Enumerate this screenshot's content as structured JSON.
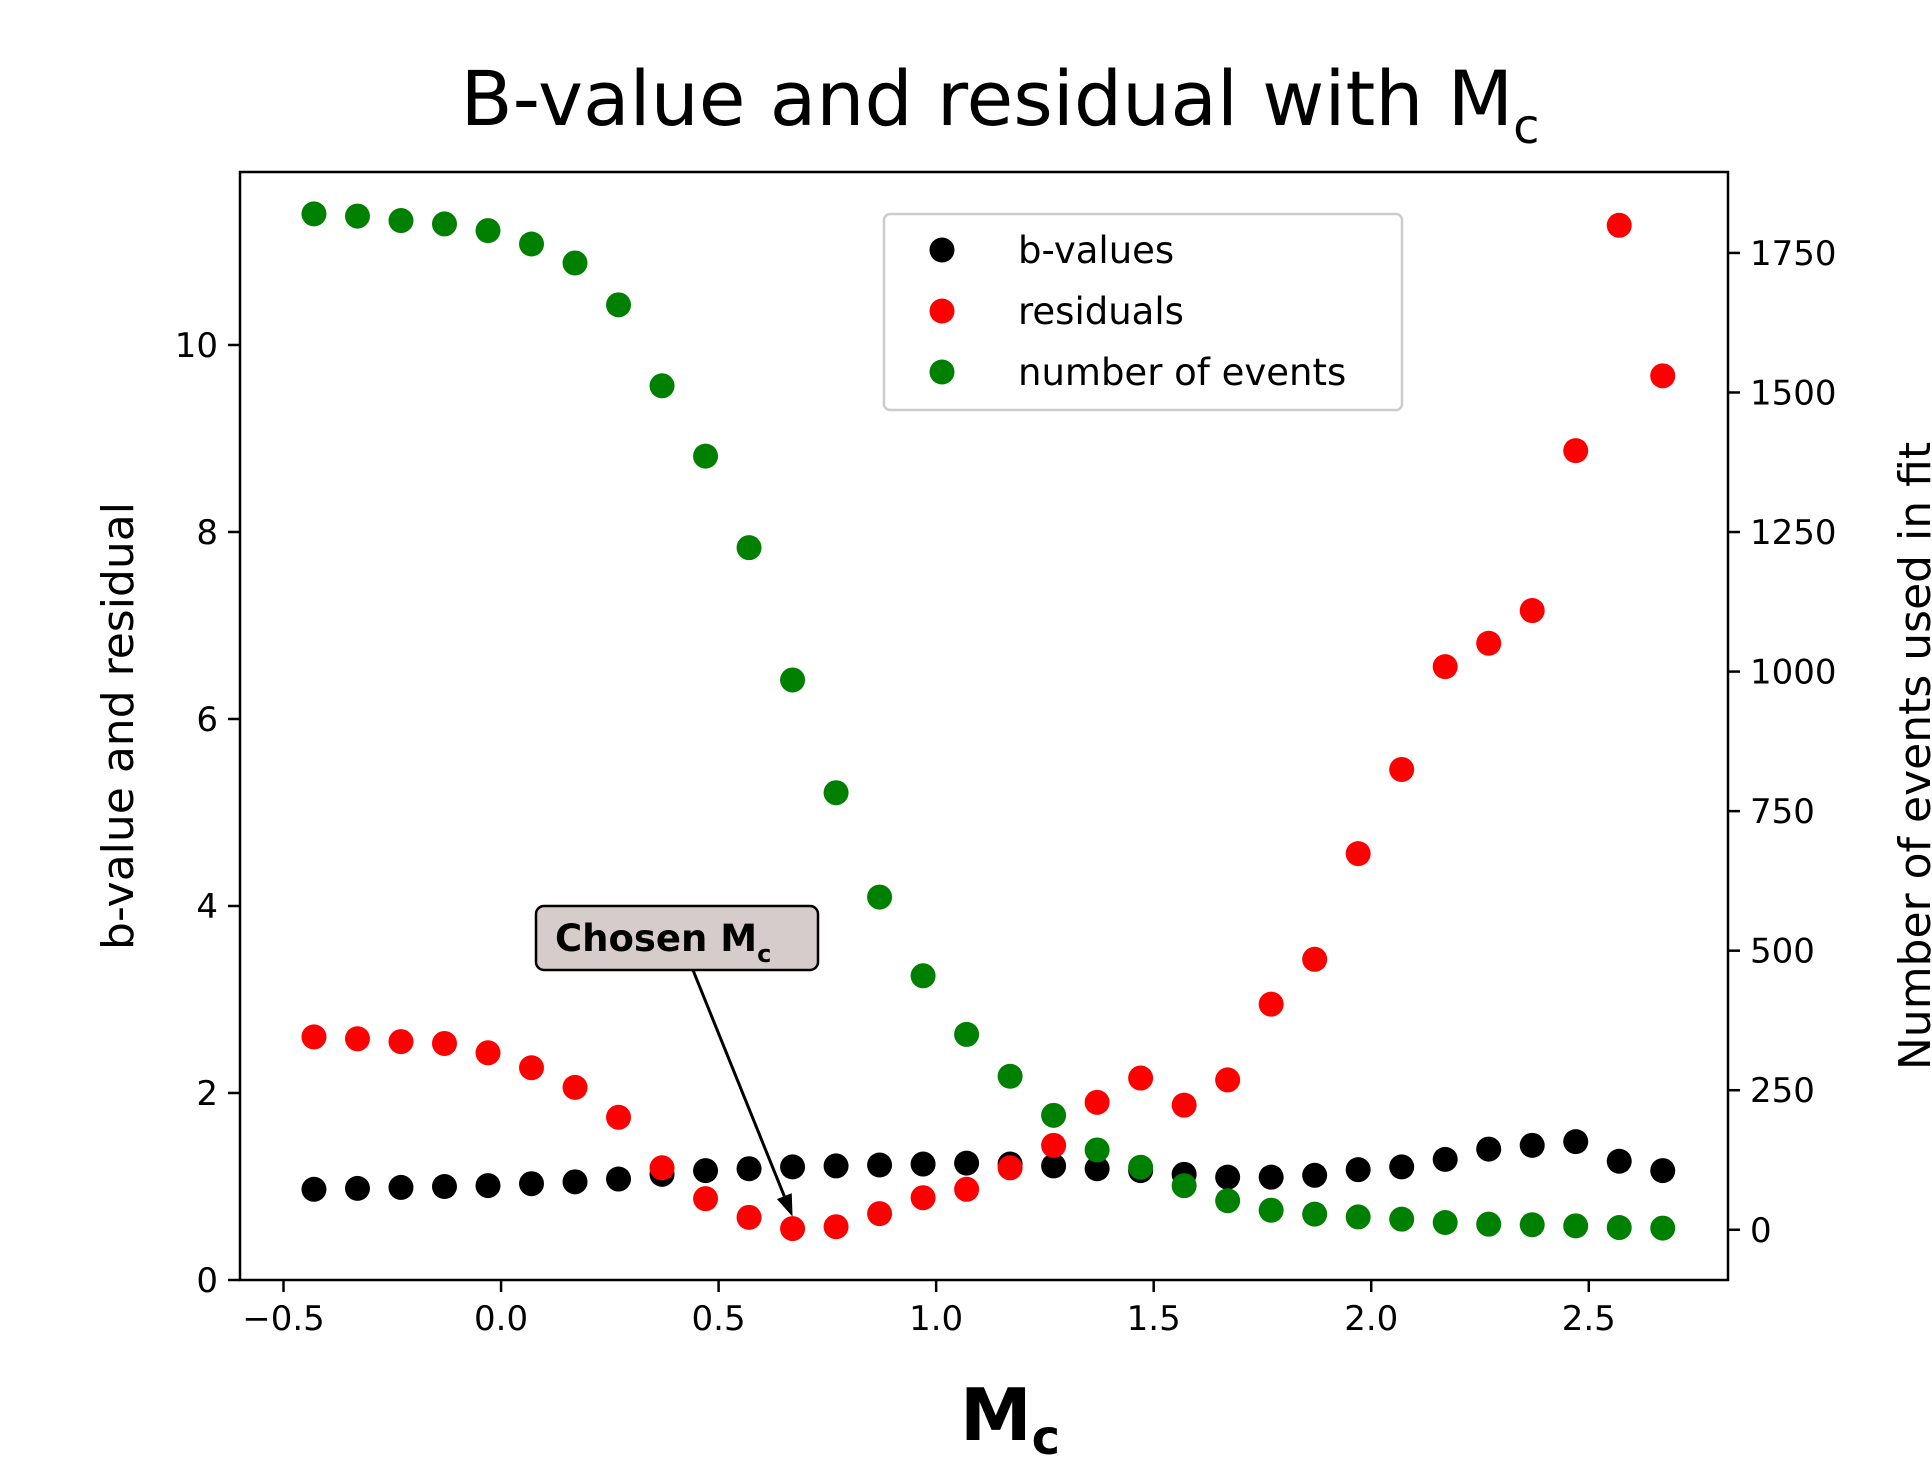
{
  "chart_data": {
    "type": "scatter",
    "title": {
      "main": "B-value and residual with M",
      "subscript": "c"
    },
    "xlabel": {
      "main": "M",
      "subscript": "c"
    },
    "ylabel_left": "b-value and residual",
    "ylabel_right": "Number of events used in fit",
    "xlim": [
      -0.6,
      2.82
    ],
    "ylim_left": [
      0,
      11.85
    ],
    "ylim_right": [
      -90,
      1895
    ],
    "x_ticks": [
      -0.5,
      0.0,
      0.5,
      1.0,
      1.5,
      2.0,
      2.5
    ],
    "x_tick_labels": [
      "−0.5",
      "0.0",
      "0.5",
      "1.0",
      "1.5",
      "2.0",
      "2.5"
    ],
    "y_left_ticks": [
      0,
      2,
      4,
      6,
      8,
      10
    ],
    "y_left_tick_labels": [
      "0",
      "2",
      "4",
      "6",
      "8",
      "10"
    ],
    "y_right_ticks": [
      0,
      250,
      500,
      750,
      1000,
      1250,
      1500,
      1750
    ],
    "y_right_tick_labels": [
      "0",
      "250",
      "500",
      "750",
      "1000",
      "1250",
      "1500",
      "1750"
    ],
    "grid": false,
    "legend_position": "top-right",
    "x": [
      -0.43,
      -0.33,
      -0.23,
      -0.13,
      -0.03,
      0.07,
      0.17,
      0.27,
      0.37,
      0.47,
      0.57,
      0.67,
      0.77,
      0.87,
      0.97,
      1.07,
      1.17,
      1.27,
      1.37,
      1.47,
      1.57,
      1.67,
      1.77,
      1.87,
      1.97,
      2.07,
      2.17,
      2.27,
      2.37,
      2.47,
      2.57,
      2.67
    ],
    "series": [
      {
        "name": "b-values",
        "color": "#000000",
        "axis": "left",
        "values": [
          0.97,
          0.98,
          0.99,
          1.0,
          1.01,
          1.03,
          1.05,
          1.08,
          1.13,
          1.17,
          1.19,
          1.21,
          1.22,
          1.23,
          1.24,
          1.25,
          1.24,
          1.22,
          1.19,
          1.17,
          1.13,
          1.1,
          1.1,
          1.12,
          1.18,
          1.21,
          1.29,
          1.4,
          1.44,
          1.48,
          1.27,
          1.17
        ]
      },
      {
        "name": "residuals",
        "color": "#ff0000",
        "axis": "left",
        "values": [
          2.6,
          2.58,
          2.55,
          2.53,
          2.43,
          2.27,
          2.06,
          1.74,
          1.2,
          0.87,
          0.67,
          0.55,
          0.57,
          0.71,
          0.88,
          0.97,
          1.2,
          1.44,
          1.9,
          2.16,
          1.87,
          2.14,
          2.95,
          3.43,
          4.56,
          5.46,
          6.56,
          6.81,
          7.16,
          8.87,
          11.28,
          9.67
        ]
      },
      {
        "name": "number of events",
        "color": "#008000",
        "axis": "right",
        "values": [
          1820,
          1816,
          1808,
          1802,
          1790,
          1766,
          1732,
          1657,
          1512,
          1386,
          1222,
          985,
          783,
          596,
          455,
          350,
          275,
          205,
          143,
          112,
          79,
          52,
          35,
          28,
          23,
          19,
          13,
          10,
          9,
          7,
          4,
          3
        ]
      }
    ],
    "annotation": {
      "text": "Chosen M",
      "subscript": "c",
      "target": {
        "x": 0.67,
        "y": 0.55
      }
    }
  }
}
